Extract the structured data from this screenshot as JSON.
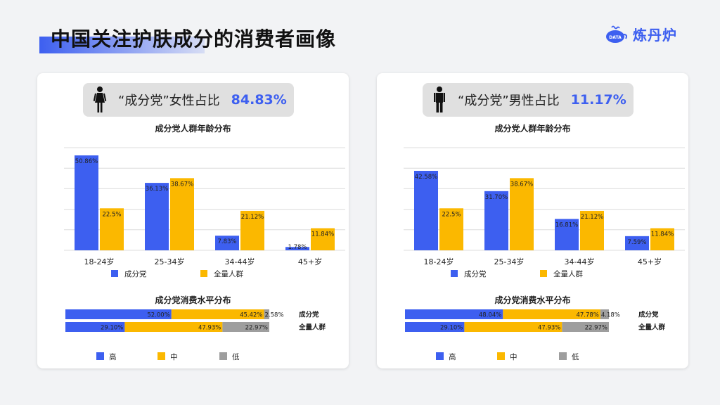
{
  "page": {
    "title": "中国关注护肤成分的消费者画像",
    "brand": "炼丹炉",
    "logo_badge": "DATA"
  },
  "colors": {
    "blue": "#3d5ff0",
    "orange": "#fbb800",
    "gray": "#9e9e9e",
    "accent": "#3d5ff0"
  },
  "panels": [
    {
      "stat_label": "“成分党”女性占比",
      "stat_value": "84.83%",
      "person_icon": "female-icon",
      "age_title": "成分党人群年龄分布",
      "cons_title": "成分党消费水平分布"
    },
    {
      "stat_label": "“成分党”男性占比",
      "stat_value": "11.17%",
      "person_icon": "male-icon",
      "age_title": "成分党人群年龄分布",
      "cons_title": "成分党消费水平分布"
    }
  ],
  "chart_data": [
    {
      "type": "bar",
      "title": "成分党人群年龄分布",
      "categories": [
        "18-24岁",
        "25-34岁",
        "34-44岁",
        "45+岁"
      ],
      "series": [
        {
          "name": "成分党",
          "values": [
            50.86,
            36.13,
            7.83,
            1.78
          ],
          "labels": [
            "50.86%",
            "36.13%",
            "7.83%",
            "1.78%"
          ]
        },
        {
          "name": "全量人群",
          "values": [
            22.5,
            38.67,
            21.12,
            11.84
          ],
          "labels": [
            "22.5%",
            "38.67%",
            "21.12%",
            "11.84%"
          ]
        }
      ],
      "ylim": [
        0,
        55
      ],
      "grid": true,
      "legend_position": "bottom"
    },
    {
      "type": "bar",
      "orientation": "horizontal-stacked-100",
      "title": "成分党消费水平分布",
      "categories": [
        "成分党",
        "全量人群"
      ],
      "series": [
        {
          "name": "高",
          "values": [
            52.0,
            29.1
          ],
          "labels": [
            "52.00%",
            "29.10%"
          ]
        },
        {
          "name": "中",
          "values": [
            45.42,
            47.93
          ],
          "labels": [
            "45.42%",
            "47.93%"
          ]
        },
        {
          "name": "低",
          "values": [
            2.58,
            22.97
          ],
          "labels": [
            "2.58%",
            "22.97%"
          ]
        }
      ],
      "legend_position": "bottom"
    },
    {
      "type": "bar",
      "title": "成分党人群年龄分布",
      "categories": [
        "18-24岁",
        "25-34岁",
        "34-44岁",
        "45+岁"
      ],
      "series": [
        {
          "name": "成分党",
          "values": [
            42.58,
            31.7,
            16.81,
            7.59
          ],
          "labels": [
            "42.58%",
            "31.70%",
            "16.81%",
            "7.59%"
          ]
        },
        {
          "name": "全量人群",
          "values": [
            22.5,
            38.67,
            21.12,
            11.84
          ],
          "labels": [
            "22.5%",
            "38.67%",
            "21.12%",
            "11.84%"
          ]
        }
      ],
      "ylim": [
        0,
        55
      ],
      "grid": true,
      "legend_position": "bottom"
    },
    {
      "type": "bar",
      "orientation": "horizontal-stacked-100",
      "title": "成分党消费水平分布",
      "categories": [
        "成分党",
        "全量人群"
      ],
      "series": [
        {
          "name": "高",
          "values": [
            48.04,
            29.1
          ],
          "labels": [
            "48.04%",
            "29.10%"
          ]
        },
        {
          "name": "中",
          "values": [
            47.78,
            47.93
          ],
          "labels": [
            "47.78%",
            "47.93%"
          ]
        },
        {
          "name": "低",
          "values": [
            4.18,
            22.97
          ],
          "labels": [
            "4.18%",
            "22.97%"
          ]
        }
      ],
      "legend_position": "bottom"
    }
  ]
}
